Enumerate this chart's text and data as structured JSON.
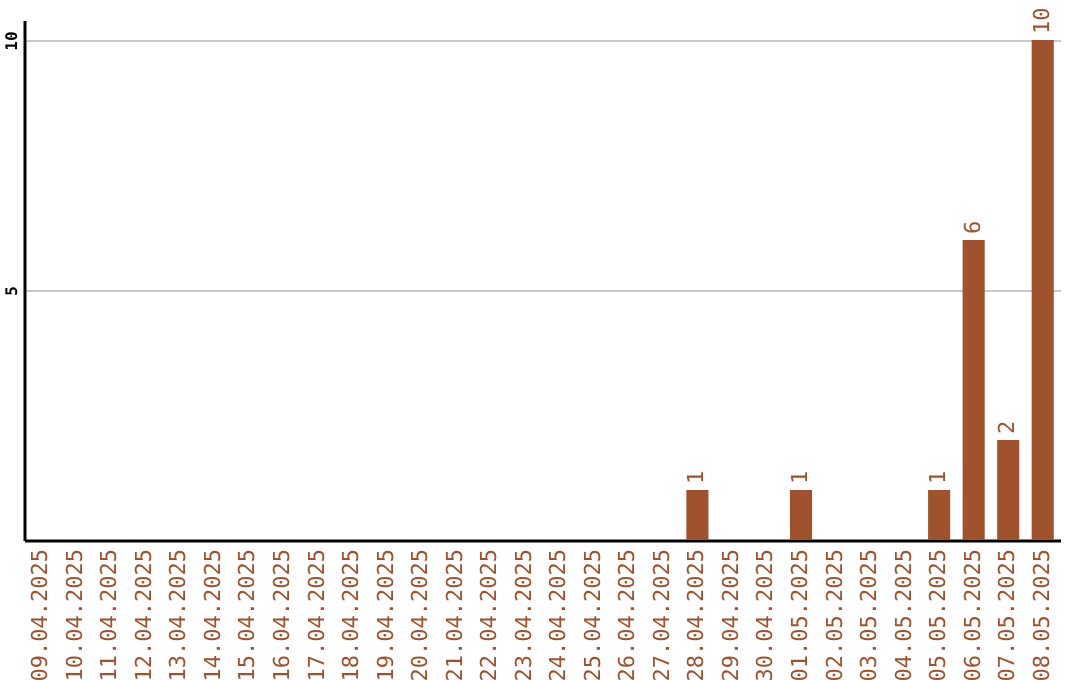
{
  "chart_data": {
    "type": "bar",
    "categories": [
      "09.04.2025",
      "10.04.2025",
      "11.04.2025",
      "12.04.2025",
      "13.04.2025",
      "14.04.2025",
      "15.04.2025",
      "16.04.2025",
      "17.04.2025",
      "18.04.2025",
      "19.04.2025",
      "20.04.2025",
      "21.04.2025",
      "22.04.2025",
      "23.04.2025",
      "24.04.2025",
      "25.04.2025",
      "26.04.2025",
      "27.04.2025",
      "28.04.2025",
      "29.04.2025",
      "30.04.2025",
      "01.05.2025",
      "02.05.2025",
      "03.05.2025",
      "04.05.2025",
      "05.05.2025",
      "06.05.2025",
      "07.05.2025",
      "08.05.2025"
    ],
    "values": [
      0,
      0,
      0,
      0,
      0,
      0,
      0,
      0,
      0,
      0,
      0,
      0,
      0,
      0,
      0,
      0,
      0,
      0,
      0,
      1,
      0,
      0,
      1,
      0,
      0,
      0,
      1,
      6,
      2,
      10
    ],
    "value_labels": [
      null,
      null,
      null,
      null,
      null,
      null,
      null,
      null,
      null,
      null,
      null,
      null,
      null,
      null,
      null,
      null,
      null,
      null,
      null,
      "1",
      null,
      null,
      "1",
      null,
      null,
      null,
      "1",
      "6",
      "2",
      "10"
    ],
    "color": "#a0522d",
    "ylim": [
      0,
      10.4
    ],
    "yticks": [
      5,
      10
    ],
    "grid": "y"
  }
}
